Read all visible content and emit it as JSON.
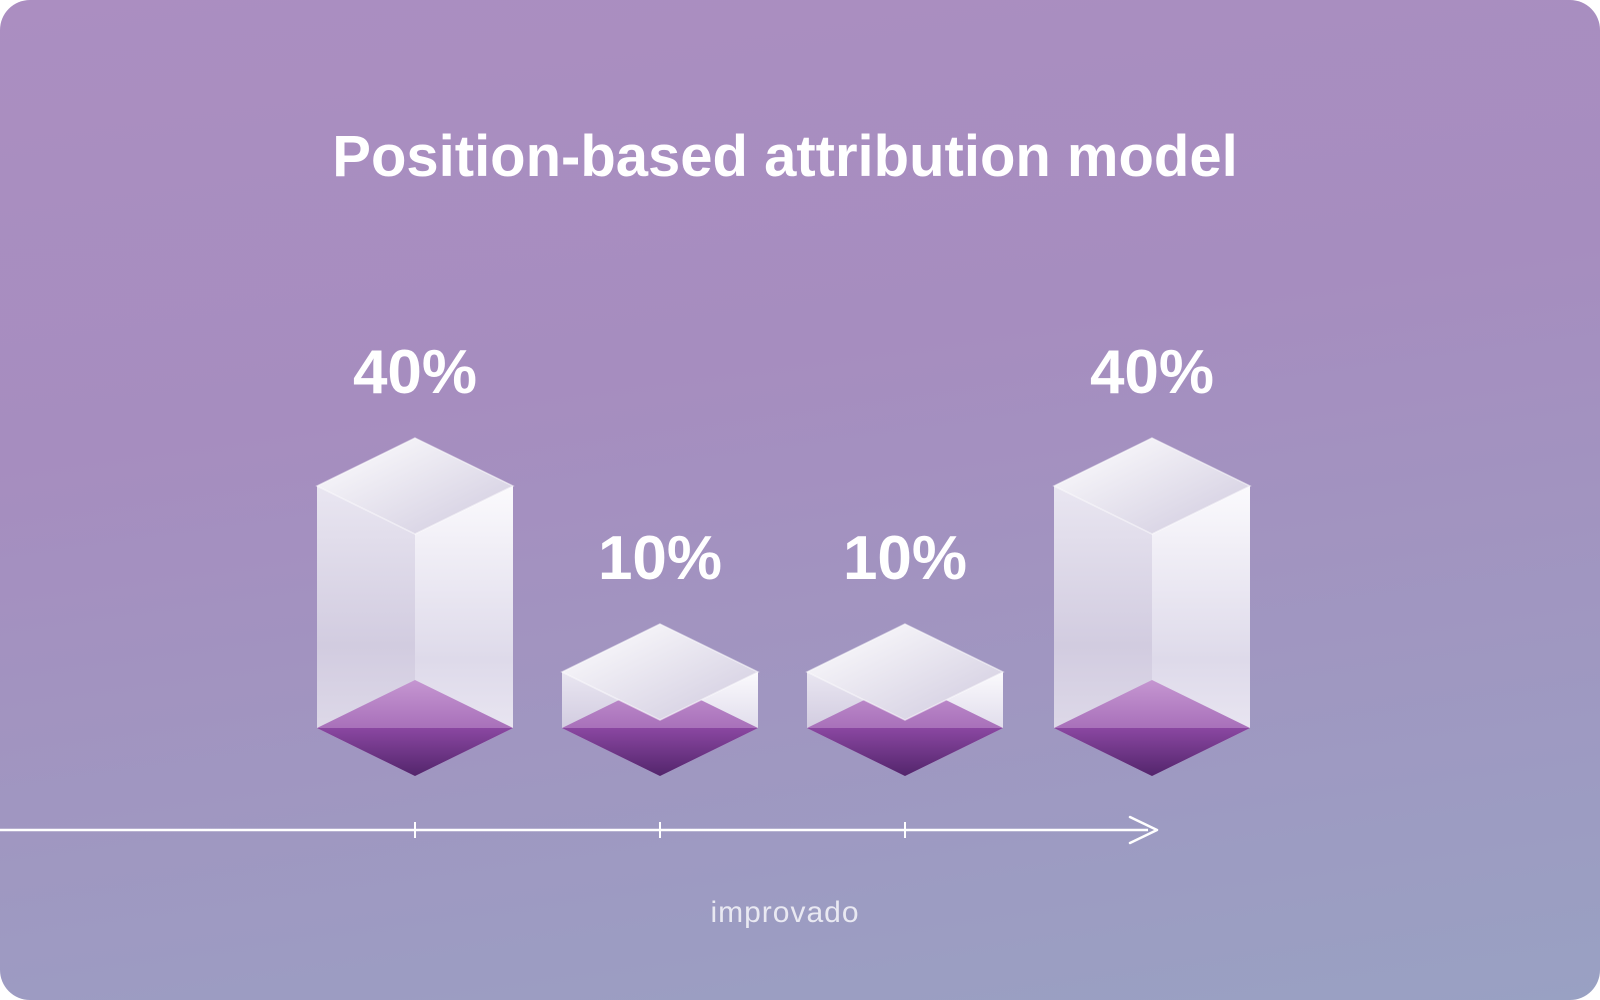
{
  "page": {
    "footer_brand": "improvado"
  },
  "colors": {
    "bg_top": "#ab8ec1",
    "bg_bottom": "#99a1c3",
    "bar_face_light": "#f7f5fa",
    "bar_face_dark": "#ccc6dc",
    "purple_light": "#c393cf",
    "purple_dark": "#53256c",
    "text": "#ffffff"
  },
  "chart_data": {
    "type": "bar",
    "title": "Position-based attribution model",
    "values": [
      40,
      10,
      10,
      40
    ],
    "labels": [
      "40%",
      "10%",
      "10%",
      "40%"
    ],
    "unit": "%",
    "series_note": "four 3D glass prisms along a left-to-right timeline",
    "x_axis": {
      "style": "arrow-line",
      "tick_count": 3,
      "tick_labels": []
    },
    "y_axis": {
      "visible": false
    },
    "grid": false,
    "legend": false
  }
}
